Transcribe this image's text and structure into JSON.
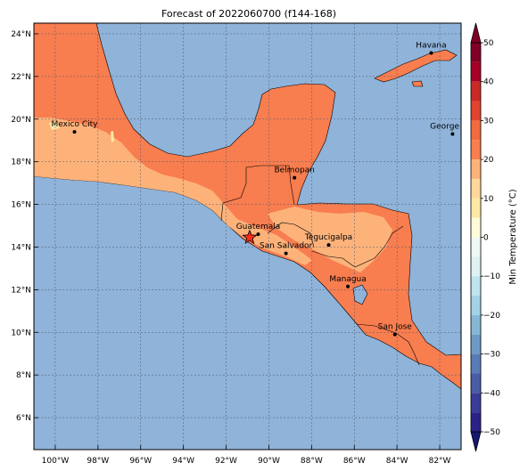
{
  "title": "Forecast of 2022060700 (f144-168)",
  "colors": {
    "ocean": "#8fb3d9",
    "t20_30": "#f87d4f",
    "t10_20": "#fdb27a",
    "t0_10": "#fee8a5",
    "coast": "#000000"
  },
  "map": {
    "lon_range": [
      -101,
      -81
    ],
    "lat_range": [
      4.5,
      24.5
    ],
    "lon_ticks": [
      {
        "v": -100,
        "label": "100°W"
      },
      {
        "v": -98,
        "label": "98°W"
      },
      {
        "v": -96,
        "label": "96°W"
      },
      {
        "v": -94,
        "label": "94°W"
      },
      {
        "v": -92,
        "label": "92°W"
      },
      {
        "v": -90,
        "label": "90°W"
      },
      {
        "v": -88,
        "label": "88°W"
      },
      {
        "v": -86,
        "label": "86°W"
      },
      {
        "v": -84,
        "label": "84°W"
      },
      {
        "v": -82,
        "label": "82°W"
      }
    ],
    "lat_ticks": [
      {
        "v": 6,
        "label": "6°N"
      },
      {
        "v": 8,
        "label": "8°N"
      },
      {
        "v": 10,
        "label": "10°N"
      },
      {
        "v": 12,
        "label": "12°N"
      },
      {
        "v": 14,
        "label": "14°N"
      },
      {
        "v": 16,
        "label": "16°N"
      },
      {
        "v": 18,
        "label": "18°N"
      },
      {
        "v": 20,
        "label": "20°N"
      },
      {
        "v": 22,
        "label": "22°N"
      },
      {
        "v": 24,
        "label": "24°N"
      }
    ],
    "cities": [
      {
        "name": "Mexico City",
        "lon": -99.1,
        "lat": 19.4
      },
      {
        "name": "Havana",
        "lon": -82.4,
        "lat": 23.1
      },
      {
        "name": "George Tov",
        "lon": -81.4,
        "lat": 19.3
      },
      {
        "name": "Belmopan",
        "lon": -88.8,
        "lat": 17.25
      },
      {
        "name": "Guatemala",
        "lon": -90.5,
        "lat": 14.6
      },
      {
        "name": "San Salvador",
        "lon": -89.2,
        "lat": 13.7
      },
      {
        "name": "Tegucigalpa",
        "lon": -87.2,
        "lat": 14.1
      },
      {
        "name": "Managua",
        "lon": -86.3,
        "lat": 12.15
      },
      {
        "name": "San Jose",
        "lon": -84.1,
        "lat": 9.9
      }
    ],
    "star": {
      "lon": -90.9,
      "lat": 14.45
    }
  },
  "colorbar": {
    "label": "Min Temperature (°C)",
    "ticks": [
      {
        "v": 50,
        "label": "50"
      },
      {
        "v": 40,
        "label": "40"
      },
      {
        "v": 30,
        "label": "30"
      },
      {
        "v": 20,
        "label": "20"
      },
      {
        "v": 10,
        "label": "10"
      },
      {
        "v": 0,
        "label": "0"
      },
      {
        "v": -10,
        "label": "−10"
      },
      {
        "v": -20,
        "label": "−20"
      },
      {
        "v": -30,
        "label": "−30"
      },
      {
        "v": -40,
        "label": "−40"
      },
      {
        "v": -50,
        "label": "−50"
      }
    ],
    "bands": [
      {
        "from": 45,
        "to": 50,
        "color": "#800026"
      },
      {
        "from": 40,
        "to": 45,
        "color": "#a50026"
      },
      {
        "from": 35,
        "to": 40,
        "color": "#c82a26"
      },
      {
        "from": 30,
        "to": 35,
        "color": "#e0432e"
      },
      {
        "from": 25,
        "to": 30,
        "color": "#f26a3e"
      },
      {
        "from": 20,
        "to": 25,
        "color": "#f87d4f"
      },
      {
        "from": 15,
        "to": 20,
        "color": "#fdb27a"
      },
      {
        "from": 10,
        "to": 15,
        "color": "#fed79a"
      },
      {
        "from": 5,
        "to": 10,
        "color": "#fee8a5"
      },
      {
        "from": 0,
        "to": 5,
        "color": "#fffbd9"
      },
      {
        "from": -5,
        "to": 0,
        "color": "#eef8f4"
      },
      {
        "from": -10,
        "to": -5,
        "color": "#dff1f2"
      },
      {
        "from": -15,
        "to": -10,
        "color": "#bfe4ee"
      },
      {
        "from": -20,
        "to": -15,
        "color": "#a3d2e6"
      },
      {
        "from": -25,
        "to": -20,
        "color": "#86b8d6"
      },
      {
        "from": -30,
        "to": -25,
        "color": "#6d9bc6"
      },
      {
        "from": -35,
        "to": -30,
        "color": "#5a7cb6"
      },
      {
        "from": -40,
        "to": -35,
        "color": "#4a5ca6"
      },
      {
        "from": -45,
        "to": -40,
        "color": "#3a3d97"
      },
      {
        "from": -50,
        "to": -45,
        "color": "#2a2288"
      }
    ],
    "extend_top_color": "#800026",
    "extend_bottom_color": "#151870"
  }
}
